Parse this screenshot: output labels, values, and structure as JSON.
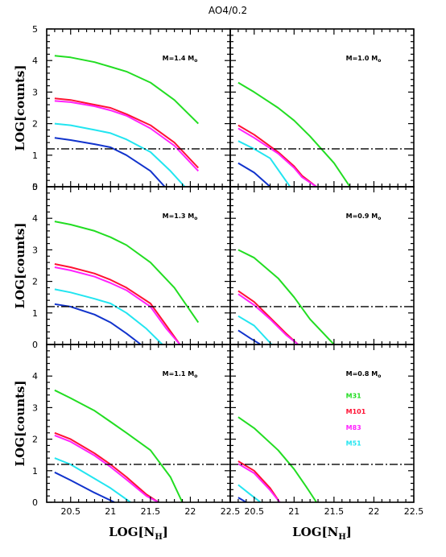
{
  "figure": {
    "title": "AO4/0.2",
    "ylabel": {
      "main": "LOG[counts]"
    },
    "xlabel": {
      "main": "LOG[N",
      "sub": "H",
      "close": "]"
    },
    "panel_mass_prefix": "M=",
    "panel_mass_unit": "M",
    "panel_mass_sub": "o"
  },
  "colors": {
    "M31": "#22dd22",
    "M101": "#ff1133",
    "M83": "#ff22ff",
    "M51": "#22e5f0",
    "fifth": "#1133cc",
    "threshold": "#000000"
  },
  "chart_data": [
    {
      "type": "line",
      "panel": "top-left",
      "mass": "1.4",
      "x_ticks": [],
      "y_ticks": [
        "0",
        "1",
        "2",
        "3",
        "4",
        "5"
      ],
      "xlim": [
        20.2,
        22.5
      ],
      "ylim": [
        0,
        5
      ],
      "threshold_y": 1.2,
      "series": [
        {
          "key": "M31",
          "x": [
            20.3,
            20.5,
            20.8,
            21.0,
            21.2,
            21.5,
            21.8,
            22.1
          ],
          "y": [
            4.15,
            4.1,
            3.95,
            3.8,
            3.65,
            3.3,
            2.75,
            2.0
          ]
        },
        {
          "key": "M101",
          "x": [
            20.3,
            20.5,
            20.8,
            21.0,
            21.2,
            21.5,
            21.8,
            22.1
          ],
          "y": [
            2.8,
            2.75,
            2.6,
            2.5,
            2.3,
            1.95,
            1.4,
            0.6
          ]
        },
        {
          "key": "M83",
          "x": [
            20.3,
            20.5,
            20.8,
            21.0,
            21.2,
            21.5,
            21.8,
            22.1
          ],
          "y": [
            2.72,
            2.68,
            2.55,
            2.42,
            2.25,
            1.85,
            1.3,
            0.5
          ]
        },
        {
          "key": "M51",
          "x": [
            20.3,
            20.5,
            20.8,
            21.0,
            21.2,
            21.5,
            21.75,
            21.93
          ],
          "y": [
            2.0,
            1.95,
            1.8,
            1.7,
            1.5,
            1.1,
            0.5,
            0.0
          ]
        },
        {
          "key": "fifth",
          "x": [
            20.3,
            20.5,
            20.8,
            21.0,
            21.2,
            21.5,
            21.68
          ],
          "y": [
            1.55,
            1.48,
            1.35,
            1.25,
            1.0,
            0.5,
            0.0
          ]
        }
      ]
    },
    {
      "type": "line",
      "panel": "top-right",
      "mass": "1.0",
      "x_ticks": [],
      "y_ticks": [],
      "xlim": [
        20.2,
        22.5
      ],
      "ylim": [
        0,
        5
      ],
      "threshold_y": 1.2,
      "series": [
        {
          "key": "M31",
          "x": [
            20.3,
            20.5,
            20.8,
            21.0,
            21.2,
            21.5,
            21.7
          ],
          "y": [
            3.3,
            3.0,
            2.5,
            2.1,
            1.6,
            0.75,
            0.0
          ]
        },
        {
          "key": "M101",
          "x": [
            20.3,
            20.5,
            20.8,
            21.0,
            21.1,
            21.28
          ],
          "y": [
            1.95,
            1.65,
            1.1,
            0.65,
            0.35,
            0.0
          ]
        },
        {
          "key": "M83",
          "x": [
            20.3,
            20.5,
            20.8,
            21.0,
            21.1,
            21.28
          ],
          "y": [
            1.85,
            1.55,
            1.05,
            0.6,
            0.3,
            0.0
          ]
        },
        {
          "key": "M51",
          "x": [
            20.3,
            20.5,
            20.7,
            20.95
          ],
          "y": [
            1.45,
            1.2,
            0.9,
            0.0
          ]
        },
        {
          "key": "fifth",
          "x": [
            20.3,
            20.5,
            20.7
          ],
          "y": [
            0.75,
            0.45,
            0.0
          ]
        }
      ]
    },
    {
      "type": "line",
      "panel": "middle-left",
      "mass": "1.3",
      "x_ticks": [],
      "y_ticks": [
        "0",
        "1",
        "2",
        "3",
        "4",
        "5"
      ],
      "xlim": [
        20.2,
        22.5
      ],
      "ylim": [
        0,
        5
      ],
      "threshold_y": 1.2,
      "series": [
        {
          "key": "M31",
          "x": [
            20.3,
            20.5,
            20.8,
            21.0,
            21.2,
            21.5,
            21.8,
            22.1
          ],
          "y": [
            3.9,
            3.8,
            3.6,
            3.4,
            3.15,
            2.6,
            1.8,
            0.7
          ]
        },
        {
          "key": "M101",
          "x": [
            20.3,
            20.5,
            20.8,
            21.0,
            21.2,
            21.5,
            21.7,
            21.87
          ],
          "y": [
            2.55,
            2.45,
            2.25,
            2.05,
            1.8,
            1.3,
            0.6,
            0.0
          ]
        },
        {
          "key": "M83",
          "x": [
            20.3,
            20.5,
            20.8,
            21.0,
            21.2,
            21.5,
            21.7,
            21.87
          ],
          "y": [
            2.45,
            2.35,
            2.15,
            1.95,
            1.72,
            1.2,
            0.5,
            0.0
          ]
        },
        {
          "key": "M51",
          "x": [
            20.3,
            20.5,
            20.8,
            21.0,
            21.2,
            21.45,
            21.65
          ],
          "y": [
            1.75,
            1.65,
            1.45,
            1.3,
            1.0,
            0.5,
            0.0
          ]
        },
        {
          "key": "fifth",
          "x": [
            20.3,
            20.5,
            20.8,
            21.0,
            21.2,
            21.38
          ],
          "y": [
            1.28,
            1.2,
            0.95,
            0.7,
            0.35,
            0.0
          ]
        }
      ]
    },
    {
      "type": "line",
      "panel": "middle-right",
      "mass": "0.9",
      "x_ticks": [],
      "y_ticks": [],
      "xlim": [
        20.2,
        22.5
      ],
      "ylim": [
        0,
        5
      ],
      "threshold_y": 1.2,
      "series": [
        {
          "key": "M31",
          "x": [
            20.3,
            20.5,
            20.8,
            21.0,
            21.2,
            21.5
          ],
          "y": [
            3.0,
            2.75,
            2.1,
            1.5,
            0.8,
            0.0
          ]
        },
        {
          "key": "M101",
          "x": [
            20.3,
            20.5,
            20.7,
            20.9,
            21.05
          ],
          "y": [
            1.7,
            1.35,
            0.85,
            0.35,
            0.0
          ]
        },
        {
          "key": "M83",
          "x": [
            20.3,
            20.5,
            20.7,
            20.9,
            21.05
          ],
          "y": [
            1.6,
            1.25,
            0.8,
            0.3,
            0.0
          ]
        },
        {
          "key": "M51",
          "x": [
            20.3,
            20.5,
            20.72
          ],
          "y": [
            0.9,
            0.6,
            0.0
          ]
        },
        {
          "key": "fifth",
          "x": [
            20.3,
            20.45,
            20.58
          ],
          "y": [
            0.45,
            0.2,
            0.0
          ]
        }
      ]
    },
    {
      "type": "line",
      "panel": "bottom-left",
      "mass": "1.1",
      "x_ticks": [
        "20.5",
        "21",
        "21.5",
        "22",
        "22.5"
      ],
      "y_ticks": [
        "0",
        "1",
        "2",
        "3",
        "4"
      ],
      "xlim": [
        20.2,
        22.5
      ],
      "ylim": [
        0,
        5
      ],
      "threshold_y": 1.2,
      "series": [
        {
          "key": "M31",
          "x": [
            20.3,
            20.5,
            20.8,
            21.0,
            21.2,
            21.5,
            21.75,
            21.9
          ],
          "y": [
            3.55,
            3.3,
            2.9,
            2.55,
            2.2,
            1.65,
            0.8,
            0.0
          ]
        },
        {
          "key": "M101",
          "x": [
            20.3,
            20.5,
            20.8,
            21.0,
            21.2,
            21.45,
            21.6
          ],
          "y": [
            2.2,
            2.0,
            1.55,
            1.2,
            0.8,
            0.25,
            0.0
          ]
        },
        {
          "key": "M83",
          "x": [
            20.3,
            20.5,
            20.8,
            21.0,
            21.2,
            21.45,
            21.6
          ],
          "y": [
            2.12,
            1.92,
            1.48,
            1.12,
            0.72,
            0.2,
            0.0
          ]
        },
        {
          "key": "M51",
          "x": [
            20.3,
            20.5,
            20.8,
            21.0,
            21.25
          ],
          "y": [
            1.4,
            1.2,
            0.75,
            0.45,
            0.0
          ]
        },
        {
          "key": "fifth",
          "x": [
            20.3,
            20.5,
            20.8,
            21.05
          ],
          "y": [
            0.95,
            0.7,
            0.3,
            0.0
          ]
        }
      ]
    },
    {
      "type": "line",
      "panel": "bottom-right",
      "mass": "0.8",
      "x_ticks": [
        "20.5",
        "21",
        "21.5",
        "22",
        "22.5"
      ],
      "y_ticks": [],
      "xlim": [
        20.2,
        22.5
      ],
      "ylim": [
        0,
        5
      ],
      "threshold_y": 1.2,
      "legend": [
        "M31",
        "M101",
        "M83",
        "M51"
      ],
      "series": [
        {
          "key": "M31",
          "x": [
            20.3,
            20.5,
            20.8,
            21.0,
            21.15,
            21.28
          ],
          "y": [
            2.7,
            2.35,
            1.65,
            1.05,
            0.5,
            0.0
          ]
        },
        {
          "key": "M101",
          "x": [
            20.3,
            20.5,
            20.7,
            20.82
          ],
          "y": [
            1.3,
            1.0,
            0.45,
            0.0
          ]
        },
        {
          "key": "M83",
          "x": [
            20.3,
            20.5,
            20.7,
            20.82
          ],
          "y": [
            1.22,
            0.92,
            0.38,
            0.0
          ]
        },
        {
          "key": "M51",
          "x": [
            20.3,
            20.45,
            20.58
          ],
          "y": [
            0.55,
            0.25,
            0.0
          ]
        },
        {
          "key": "fifth",
          "x": [
            20.3,
            20.4
          ],
          "y": [
            0.15,
            0.0
          ]
        }
      ]
    }
  ]
}
